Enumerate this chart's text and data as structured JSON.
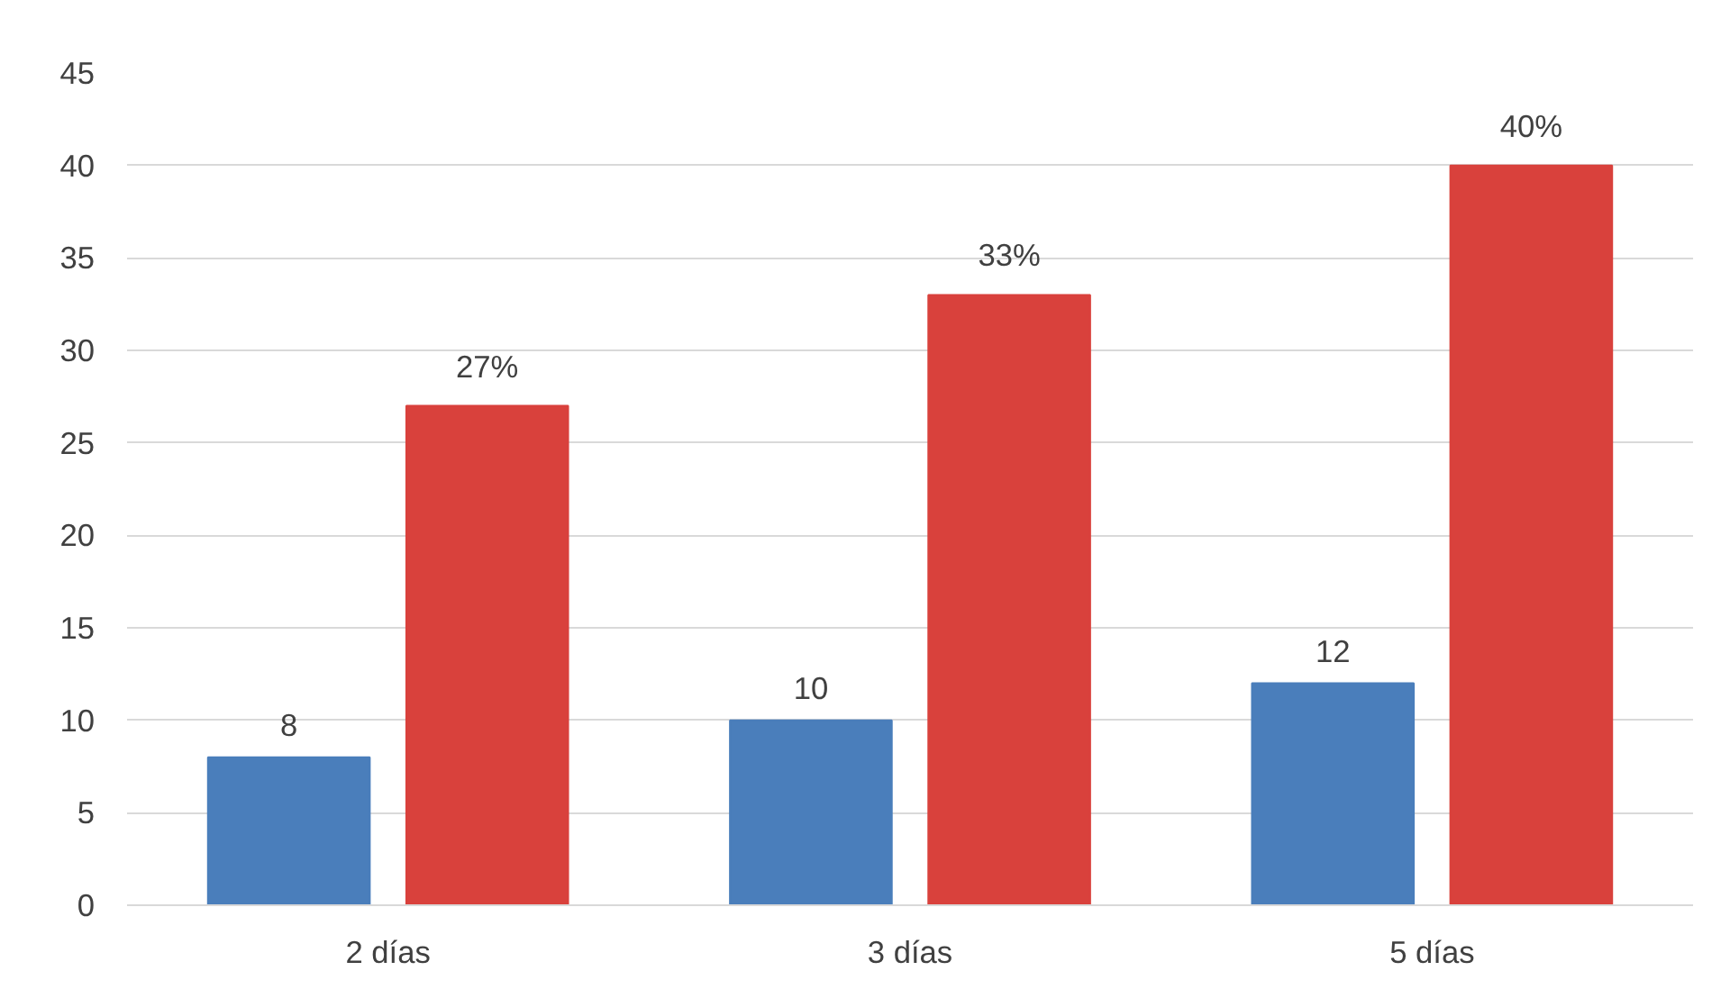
{
  "chart_data": {
    "type": "bar",
    "categories": [
      "2 días",
      "3 días",
      "5 días"
    ],
    "series": [
      {
        "color": "#4a7ebb",
        "values": [
          8,
          10,
          12
        ],
        "value_labels": [
          "8",
          "10",
          "12"
        ]
      },
      {
        "color": "#d9413c",
        "values": [
          27,
          33,
          40
        ],
        "value_labels": [
          "27%",
          "33%",
          "40%"
        ]
      }
    ],
    "ylim": [
      0,
      45
    ],
    "yticks": [
      0,
      5,
      10,
      15,
      20,
      25,
      30,
      35,
      40,
      45
    ],
    "grid": "y"
  }
}
